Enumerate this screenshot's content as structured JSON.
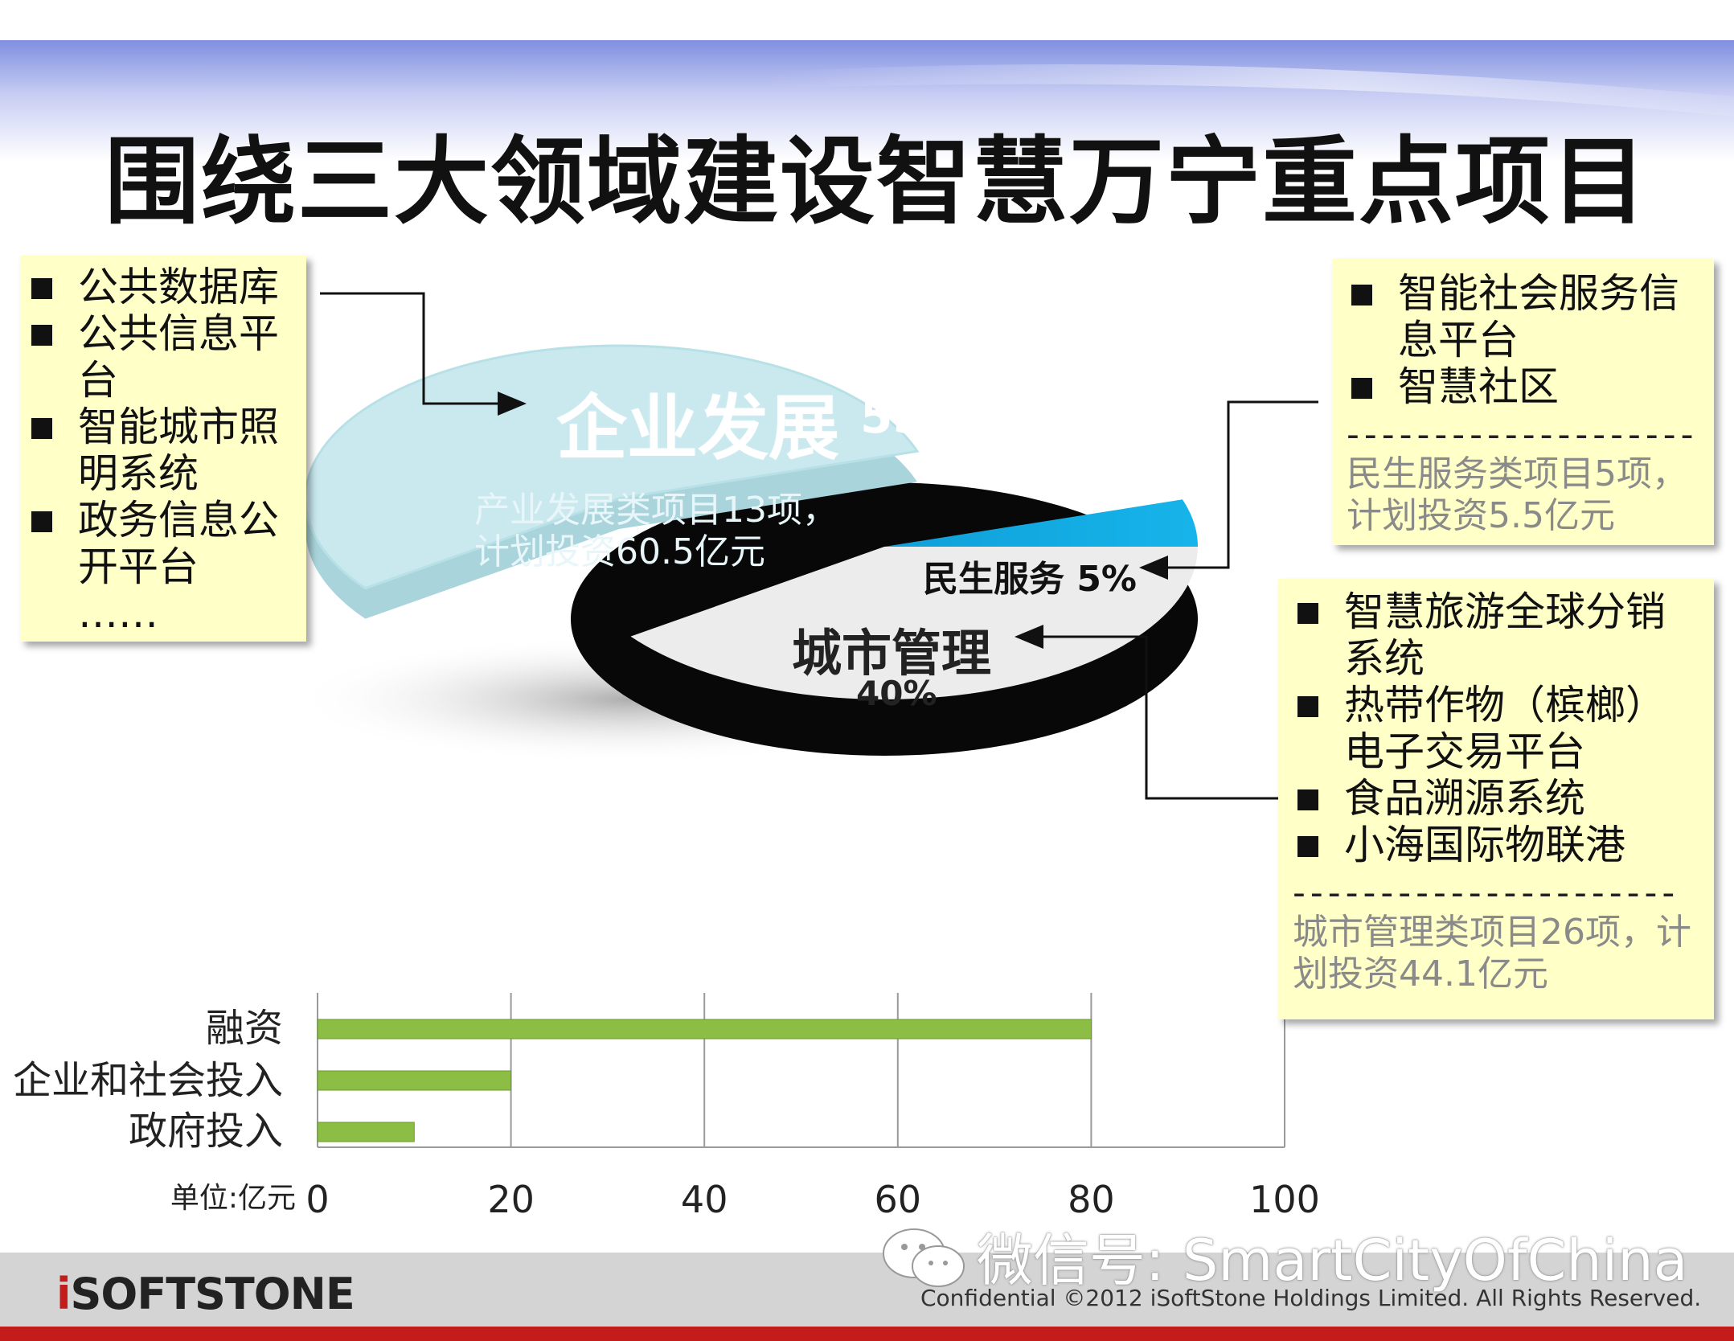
{
  "title": "围绕三大领域建设智慧万宁重点项目",
  "colors": {
    "enterprise": "#c9e9ef",
    "livelihood": "#12a9e0",
    "city": "#ececec",
    "bar": "#8cbd45",
    "note_bg": "#ffffc8",
    "footer_red": "#c41b1b"
  },
  "notes": {
    "left": {
      "items": [
        "公共数据库",
        "公共信息平台",
        "智能城市照明系统",
        "政务信息公开平台"
      ],
      "ellipsis": "……"
    },
    "top_right": {
      "items": [
        "智能社会服务信息平台",
        "智慧社区"
      ],
      "dash": "--------------------",
      "summary": "民生服务类项目5项，计划投资5.5亿元"
    },
    "bottom_right": {
      "items": [
        "智慧旅游全球分销系统",
        "热带作物（槟榔）电子交易平台",
        "食品溯源系统",
        "小海国际物联港"
      ],
      "dash": "----------------------",
      "summary": "城市管理类项目26项，计划投资44.1亿元"
    }
  },
  "pie_labels": {
    "enterprise_name": "企业发展",
    "enterprise_pct": "55%",
    "enterprise_desc_1": "产业发展类项目13项，",
    "enterprise_desc_2": "计划投资60.5亿元",
    "livelihood": "民生服务 5%",
    "city_name": "城市管理",
    "city_pct": "40%"
  },
  "chart_data": [
    {
      "type": "pie",
      "labels": [
        "企业发展",
        "民生服务",
        "城市管理"
      ],
      "values": [
        55,
        5,
        40
      ]
    },
    {
      "type": "bar",
      "orientation": "horizontal",
      "categories": [
        "融资",
        "企业和社会投入",
        "政府投入"
      ],
      "values": [
        80,
        20,
        10
      ],
      "xlabel": "单位:亿元",
      "xlim": [
        0,
        100
      ],
      "xticks": [
        "0",
        "20",
        "40",
        "60",
        "80",
        "100"
      ]
    }
  ],
  "footer": {
    "logo_i": "i",
    "logo_rest": "SOFTSTONE",
    "copyright": "Confidential ©2012 iSoftStone Holdings Limited. All Rights Reserved.",
    "watermark": "微信号: SmartCityOfChina"
  }
}
